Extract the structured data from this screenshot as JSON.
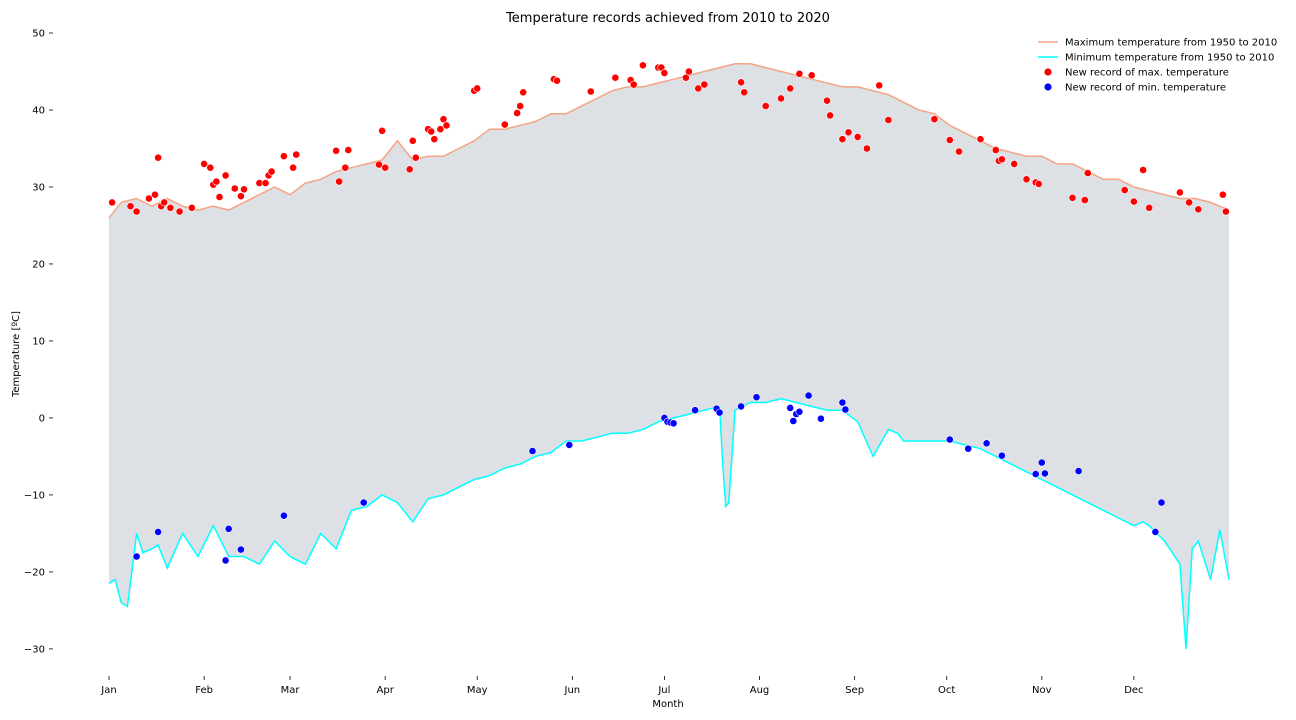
{
  "chart_data": {
    "type": "line",
    "title": "Temperature records achieved from 2010 to 2020",
    "xlabel": "Month",
    "ylabel": "Temperature [ºC]",
    "xlim": [
      1,
      366
    ],
    "ylim": [
      -33,
      50
    ],
    "grid": false,
    "legend_position": "top-right",
    "months": [
      "Jan",
      "Feb",
      "Mar",
      "Apr",
      "May",
      "Jun",
      "Jul",
      "Aug",
      "Sep",
      "Oct",
      "Nov",
      "Dec"
    ],
    "month_start_days": [
      1,
      32,
      60,
      91,
      121,
      152,
      182,
      213,
      244,
      274,
      305,
      335
    ],
    "yticks": [
      -30,
      -20,
      -10,
      0,
      10,
      20,
      30,
      40,
      50
    ],
    "yticklabels": [
      "−30",
      "−20",
      "−10",
      "0",
      "10",
      "20",
      "30",
      "40",
      "50"
    ],
    "fill_color": "#dde1e5",
    "series": [
      {
        "name": "Maximum temperature from 1950 to 2010",
        "kind": "line",
        "color": "#f4a582",
        "x": [
          1,
          5,
          10,
          15,
          20,
          25,
          30,
          35,
          40,
          45,
          50,
          55,
          60,
          65,
          70,
          75,
          80,
          85,
          90,
          95,
          100,
          105,
          110,
          115,
          120,
          125,
          130,
          135,
          140,
          145,
          150,
          155,
          160,
          165,
          170,
          175,
          180,
          185,
          190,
          195,
          200,
          205,
          210,
          215,
          220,
          225,
          230,
          235,
          240,
          245,
          250,
          255,
          260,
          265,
          270,
          275,
          280,
          285,
          290,
          295,
          300,
          305,
          310,
          315,
          320,
          325,
          330,
          335,
          340,
          345,
          350,
          355,
          360,
          366
        ],
        "y": [
          26,
          28,
          28.5,
          27.5,
          28.5,
          27.5,
          27,
          27.5,
          27,
          28,
          29,
          30,
          29,
          30.5,
          31,
          32,
          32.5,
          33,
          33.5,
          36,
          33.5,
          34,
          34,
          35,
          36,
          37.5,
          37.5,
          38,
          38.5,
          39.5,
          39.5,
          40.5,
          41.5,
          42.5,
          43,
          43,
          43.5,
          44,
          44.5,
          45,
          45.5,
          46,
          46,
          45.5,
          45,
          44.5,
          44,
          43.5,
          43,
          43,
          42.5,
          42,
          41,
          40,
          39.5,
          38,
          37,
          36,
          35,
          34.5,
          34,
          34,
          33,
          33,
          32,
          31,
          31,
          30,
          29.5,
          29,
          28.5,
          28.5,
          28,
          27
        ]
      },
      {
        "name": "Minimum temperature from 1950 to 2010",
        "kind": "line",
        "color": "#00ffff",
        "x": [
          1,
          3,
          5,
          7,
          10,
          12,
          15,
          17,
          20,
          25,
          30,
          35,
          40,
          45,
          50,
          55,
          60,
          65,
          70,
          75,
          80,
          85,
          90,
          95,
          100,
          105,
          110,
          115,
          120,
          125,
          130,
          135,
          140,
          145,
          150,
          155,
          160,
          165,
          170,
          175,
          180,
          185,
          190,
          195,
          200,
          201,
          202,
          203,
          205,
          210,
          215,
          220,
          225,
          230,
          235,
          240,
          245,
          250,
          255,
          258,
          260,
          265,
          270,
          275,
          280,
          285,
          290,
          295,
          300,
          305,
          310,
          315,
          320,
          325,
          330,
          335,
          338,
          340,
          345,
          350,
          352,
          354,
          356,
          360,
          363,
          366
        ],
        "y": [
          -21.5,
          -21,
          -24,
          -24.5,
          -15,
          -17.5,
          -17,
          -16.5,
          -19.5,
          -15,
          -18,
          -14,
          -18,
          -18,
          -19,
          -16,
          -18,
          -19,
          -15,
          -17,
          -12,
          -11.5,
          -10,
          -11,
          -13.5,
          -10.5,
          -10,
          -9,
          -8,
          -7.5,
          -6.5,
          -6,
          -5,
          -4.5,
          -3,
          -3,
          -2.5,
          -2,
          -2,
          -1.5,
          -0.5,
          0,
          0.5,
          1,
          1.5,
          -6,
          -11.5,
          -11,
          1,
          2,
          2,
          2.5,
          2,
          1.5,
          1,
          1,
          -0.5,
          -5,
          -1.5,
          -2,
          -3,
          -3,
          -3,
          -3,
          -3.5,
          -4,
          -5,
          -6,
          -7,
          -8,
          -9,
          -10,
          -11,
          -12,
          -13,
          -14,
          -13.5,
          -14,
          -16,
          -19,
          -30,
          -17,
          -16,
          -21,
          -14.5,
          -21
        ]
      },
      {
        "name": "New record of max. temperature",
        "kind": "scatter",
        "color": "#ff0000",
        "x": [
          2,
          8,
          10,
          14,
          17,
          18,
          16,
          19,
          21,
          24,
          28,
          32,
          34,
          35,
          36,
          37,
          39,
          42,
          44,
          45,
          50,
          52,
          53,
          54,
          58,
          61,
          62,
          75,
          76,
          78,
          79,
          89,
          90,
          91,
          99,
          100,
          101,
          105,
          106,
          107,
          109,
          110,
          111,
          120,
          121,
          130,
          134,
          135,
          136,
          146,
          147,
          158,
          166,
          171,
          172,
          175,
          180,
          181,
          182,
          189,
          190,
          193,
          195,
          207,
          208,
          215,
          220,
          223,
          226,
          230,
          235,
          236,
          240,
          242,
          245,
          248,
          252,
          255,
          270,
          275,
          278,
          285,
          290,
          291,
          292,
          296,
          300,
          303,
          304,
          315,
          319,
          320,
          332,
          335,
          338,
          340,
          350,
          353,
          356,
          364,
          365
        ],
        "y": [
          28,
          27.5,
          26.8,
          28.5,
          33.8,
          27.5,
          29,
          28,
          27.3,
          26.8,
          27.3,
          33,
          32.5,
          30.3,
          30.7,
          28.7,
          31.5,
          29.8,
          28.8,
          29.7,
          30.5,
          30.5,
          31.5,
          32,
          34,
          32.5,
          34.2,
          34.7,
          30.7,
          32.5,
          34.8,
          32.9,
          37.3,
          32.5,
          32.3,
          36,
          33.8,
          37.5,
          37.2,
          36.2,
          37.5,
          38.8,
          38,
          42.5,
          42.8,
          38.1,
          39.6,
          40.5,
          42.3,
          44,
          43.8,
          42.4,
          44.2,
          43.9,
          43.3,
          45.8,
          45.5,
          45.5,
          44.8,
          44.2,
          45,
          42.8,
          43.3,
          43.6,
          42.3,
          40.5,
          41.5,
          42.8,
          44.7,
          44.5,
          41.2,
          39.3,
          36.2,
          37.1,
          36.5,
          35,
          43.2,
          38.7,
          38.8,
          36.1,
          34.6,
          36.2,
          34.8,
          33.4,
          33.6,
          33,
          31,
          30.6,
          30.4,
          28.6,
          28.3,
          31.8,
          29.6,
          28.1,
          32.2,
          27.3,
          29.3,
          28,
          27.1,
          29,
          26.8
        ],
        "note_suppressed": false
      },
      {
        "name": "New record of min. temperature",
        "kind": "scatter",
        "color": "#0000ff",
        "x": [
          10,
          17,
          39,
          40,
          44,
          58,
          84,
          139,
          151,
          182,
          183,
          184,
          185,
          192,
          199,
          200,
          207,
          212,
          223,
          224,
          225,
          226,
          229,
          233,
          240,
          241,
          275,
          281,
          287,
          292,
          303,
          305,
          306,
          317,
          342,
          344
        ],
        "y": [
          -18,
          -14.8,
          -18.5,
          -14.4,
          -17.1,
          -12.7,
          -11,
          -4.3,
          -3.5,
          0,
          -0.5,
          -0.6,
          -0.7,
          1,
          1.2,
          0.7,
          1.5,
          2.7,
          1.3,
          -0.4,
          0.5,
          0.8,
          2.9,
          -0.1,
          2,
          1.1,
          -2.8,
          -4,
          -3.3,
          -4.9,
          -7.3,
          -5.8,
          -7.2,
          -6.9,
          -14.8,
          -11
        ]
      }
    ]
  }
}
